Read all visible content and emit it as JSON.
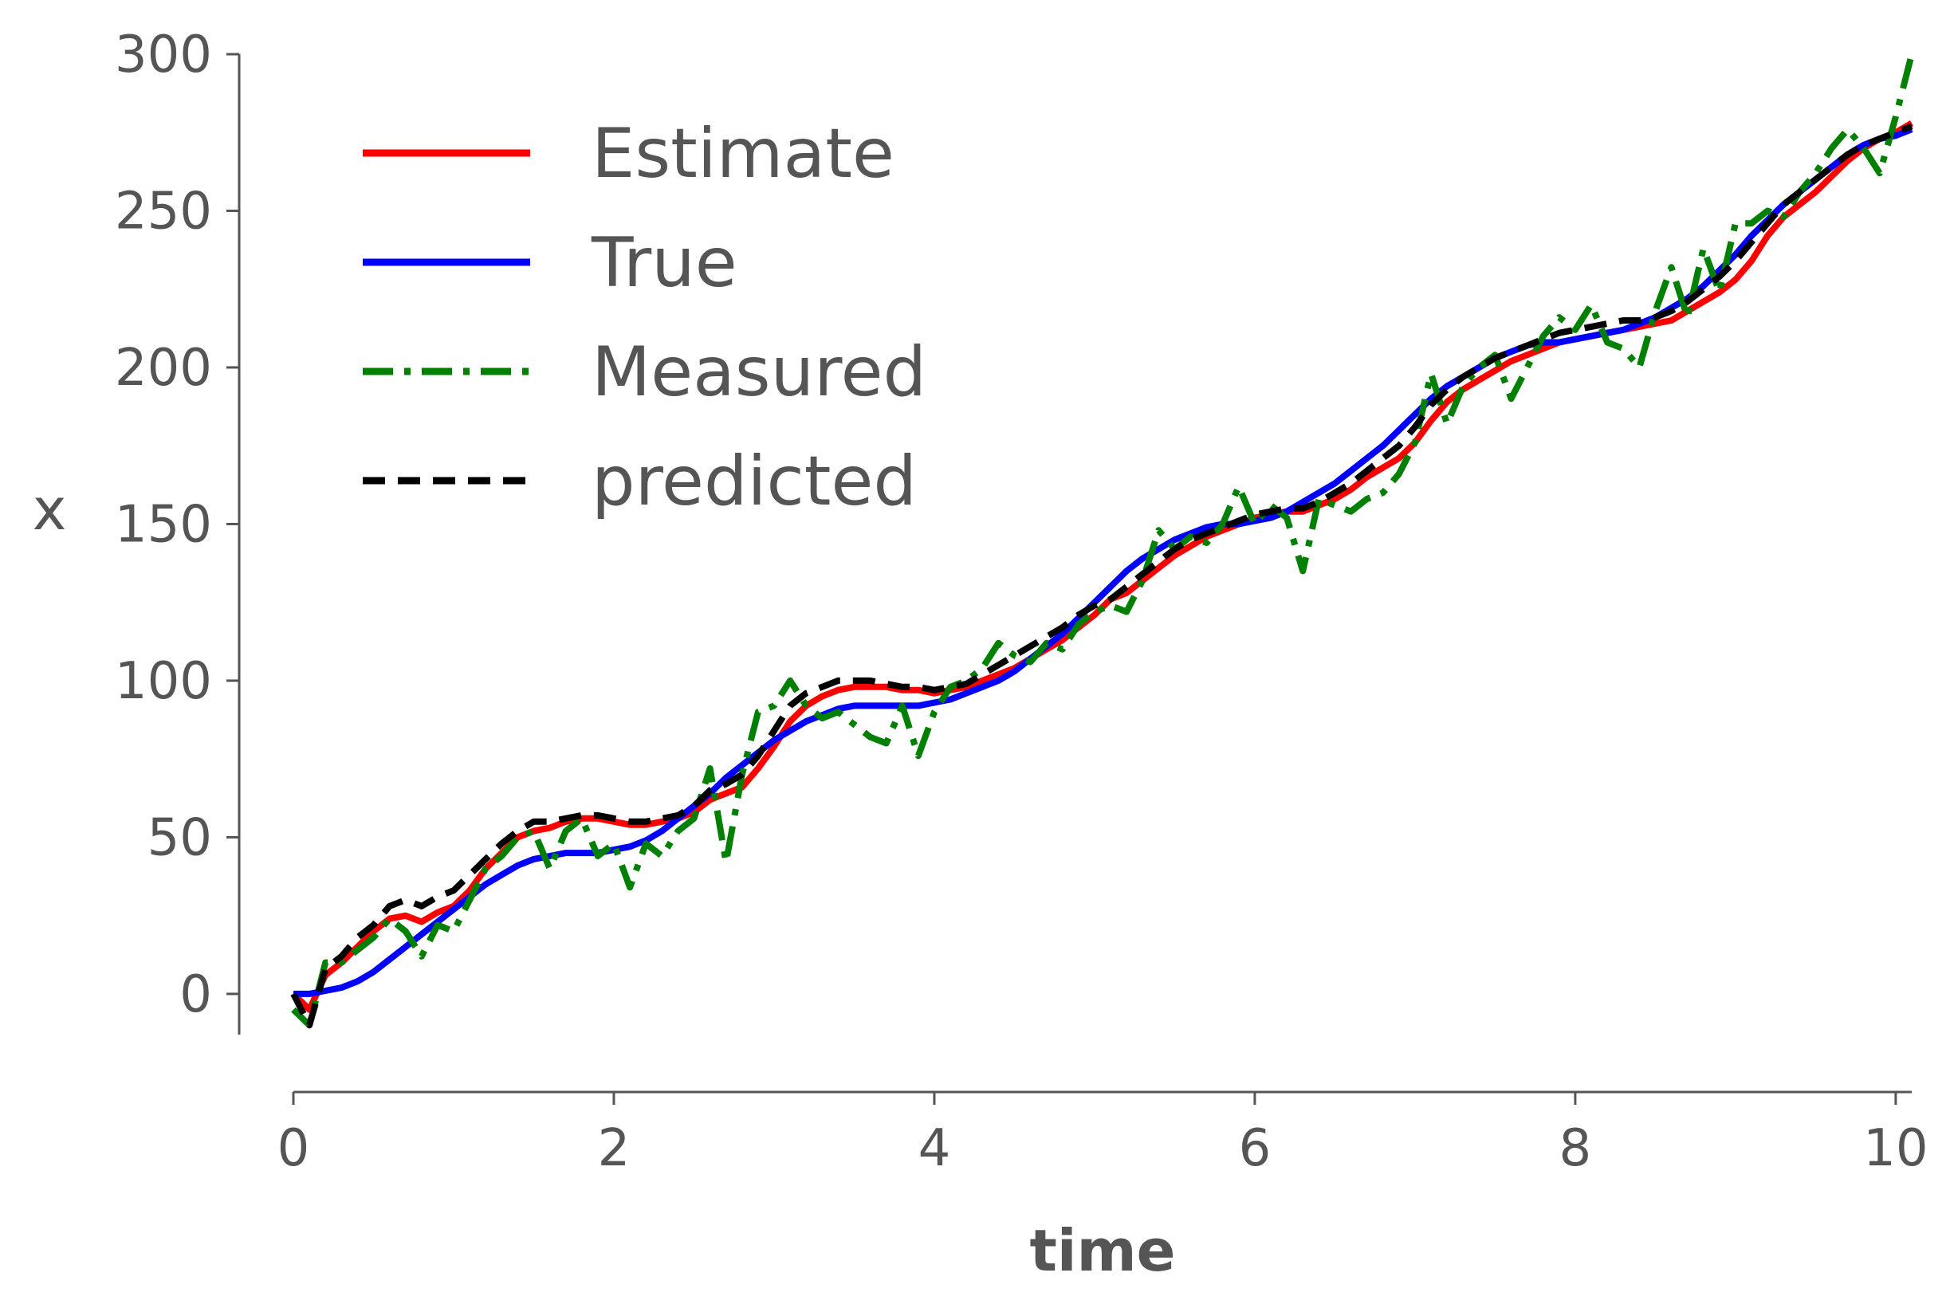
{
  "chart_data": {
    "type": "line",
    "title": "",
    "xlabel": "time",
    "ylabel": "x",
    "xlim": [
      0,
      10.1
    ],
    "ylim": [
      -13,
      300
    ],
    "xticks": [
      0,
      2,
      4,
      6,
      8,
      10
    ],
    "yticks": [
      0,
      50,
      100,
      150,
      200,
      250,
      300
    ],
    "xtick_labels": [
      "0",
      "2",
      "4",
      "6",
      "8",
      "10"
    ],
    "ytick_labels": [
      "0",
      "50",
      "100",
      "150",
      "200",
      "250",
      "300"
    ],
    "grid": false,
    "legend": "top-left",
    "x": [
      0.0,
      0.1,
      0.2,
      0.3,
      0.4,
      0.5,
      0.6,
      0.7,
      0.8,
      0.9,
      1.0,
      1.1,
      1.2,
      1.3,
      1.4,
      1.5,
      1.6,
      1.7,
      1.8,
      1.9,
      2.0,
      2.1,
      2.2,
      2.3,
      2.4,
      2.5,
      2.6,
      2.7,
      2.8,
      2.9,
      3.0,
      3.1,
      3.2,
      3.3,
      3.4,
      3.5,
      3.6,
      3.7,
      3.8,
      3.9,
      4.0,
      4.1,
      4.2,
      4.3,
      4.4,
      4.5,
      4.6,
      4.7,
      4.8,
      4.9,
      5.0,
      5.1,
      5.2,
      5.3,
      5.4,
      5.5,
      5.6,
      5.7,
      5.8,
      5.9,
      6.0,
      6.1,
      6.2,
      6.3,
      6.4,
      6.5,
      6.6,
      6.7,
      6.8,
      6.9,
      7.0,
      7.1,
      7.2,
      7.3,
      7.4,
      7.5,
      7.6,
      7.7,
      7.8,
      7.9,
      8.0,
      8.1,
      8.2,
      8.3,
      8.4,
      8.5,
      8.6,
      8.7,
      8.8,
      8.9,
      9.0,
      9.1,
      9.2,
      9.3,
      9.4,
      9.5,
      9.6,
      9.7,
      9.8,
      9.9,
      10.0,
      10.1
    ],
    "series": [
      {
        "name": "Estimate",
        "color": "#ff0000",
        "dash": "solid",
        "values": [
          0,
          -5,
          6,
          10,
          15,
          20,
          24,
          25,
          23,
          26,
          28,
          33,
          40,
          45,
          50,
          52,
          53,
          55,
          56,
          56,
          55,
          54,
          54,
          55,
          56,
          58,
          62,
          64,
          66,
          72,
          79,
          87,
          92,
          95,
          97,
          98,
          98,
          98,
          97,
          97,
          96,
          97,
          98,
          100,
          102,
          104,
          107,
          110,
          113,
          117,
          121,
          126,
          128,
          132,
          136,
          140,
          143,
          146,
          148,
          150,
          152,
          153,
          154,
          154,
          156,
          158,
          161,
          165,
          168,
          171,
          176,
          183,
          189,
          193,
          196,
          199,
          202,
          204,
          206,
          208,
          209,
          210,
          211,
          212,
          213,
          214,
          215,
          218,
          221,
          224,
          228,
          234,
          242,
          248,
          252,
          256,
          261,
          266,
          270,
          273,
          275,
          278
        ]
      },
      {
        "name": "True",
        "color": "#0000ff",
        "dash": "solid",
        "values": [
          0,
          0,
          1,
          2,
          4,
          7,
          11,
          15,
          19,
          23,
          27,
          31,
          35,
          38,
          41,
          43,
          44,
          45,
          45,
          45,
          46,
          47,
          49,
          52,
          56,
          60,
          64,
          69,
          73,
          77,
          81,
          84,
          87,
          89,
          91,
          92,
          92,
          92,
          92,
          92,
          93,
          94,
          96,
          98,
          100,
          103,
          107,
          111,
          115,
          120,
          125,
          130,
          135,
          139,
          142,
          145,
          147,
          149,
          150,
          150,
          151,
          152,
          154,
          157,
          160,
          163,
          167,
          171,
          175,
          180,
          185,
          190,
          194,
          197,
          200,
          203,
          205,
          207,
          208,
          208,
          209,
          210,
          211,
          212,
          214,
          216,
          219,
          222,
          226,
          231,
          236,
          242,
          247,
          252,
          256,
          260,
          264,
          268,
          271,
          273,
          274,
          276
        ]
      },
      {
        "name": "Measured",
        "color": "#008000",
        "dash": "dashdot",
        "values": [
          -5,
          -10,
          10,
          10,
          14,
          18,
          24,
          20,
          12,
          22,
          20,
          30,
          40,
          44,
          50,
          52,
          40,
          52,
          56,
          44,
          48,
          34,
          48,
          44,
          52,
          56,
          72,
          42,
          70,
          90,
          92,
          100,
          92,
          88,
          90,
          86,
          82,
          80,
          92,
          76,
          90,
          98,
          100,
          104,
          112,
          108,
          106,
          112,
          110,
          118,
          122,
          124,
          122,
          132,
          148,
          142,
          146,
          144,
          150,
          162,
          150,
          156,
          152,
          135,
          158,
          156,
          154,
          158,
          160,
          166,
          176,
          198,
          182,
          194,
          200,
          204,
          190,
          200,
          210,
          216,
          212,
          220,
          208,
          206,
          200,
          218,
          232,
          216,
          238,
          224,
          246,
          246,
          250,
          248,
          256,
          262,
          270,
          276,
          270,
          262,
          280,
          300
        ]
      },
      {
        "name": "predicted",
        "color": "#000000",
        "dash": "dashed",
        "values": [
          0,
          -10,
          8,
          12,
          18,
          22,
          28,
          30,
          28,
          31,
          33,
          38,
          43,
          48,
          52,
          55,
          55,
          56,
          57,
          57,
          56,
          55,
          55,
          56,
          57,
          60,
          65,
          67,
          70,
          76,
          84,
          92,
          96,
          98,
          100,
          100,
          100,
          99,
          98,
          98,
          97,
          98,
          99,
          102,
          105,
          108,
          111,
          114,
          117,
          121,
          124,
          126,
          130,
          134,
          138,
          142,
          145,
          147,
          149,
          151,
          153,
          154,
          155,
          155,
          157,
          160,
          163,
          167,
          171,
          175,
          181,
          188,
          193,
          197,
          200,
          203,
          205,
          207,
          209,
          211,
          212,
          213,
          214,
          215,
          215,
          216,
          218,
          221,
          225,
          229,
          234,
          240,
          246,
          252,
          256,
          260,
          264,
          268,
          271,
          273,
          275,
          277
        ]
      }
    ]
  }
}
